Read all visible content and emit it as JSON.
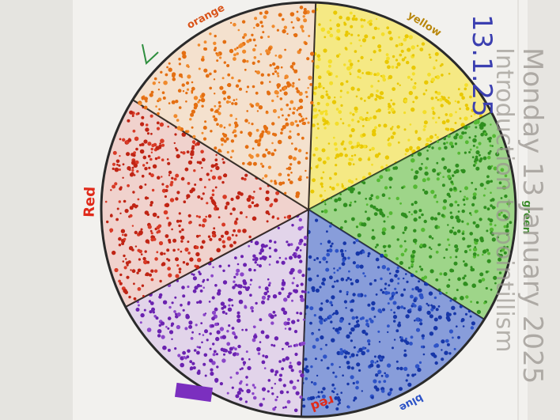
{
  "photo": {
    "paper_color": "#f2f1ee",
    "wheel": {
      "segments": [
        {
          "label": "yellow",
          "color": "#f4de2a",
          "dot_color": "#e9c800",
          "label_color": "#b8860b"
        },
        {
          "label": "green",
          "color": "#55b933",
          "dot_color": "#2f8f1f",
          "label_color": "#3a8a2a"
        },
        {
          "label": "blue",
          "color": "#2d53c7",
          "dot_color": "#1636a8",
          "label_color": "#2d53c7"
        },
        {
          "label": "",
          "color": "#8a45c9",
          "dot_color": "#6a22b0",
          "label_color": "#7b2fbf"
        },
        {
          "label": "Red",
          "color": "#d83a26",
          "dot_color": "#c02414",
          "label_color": "#e02a1a"
        },
        {
          "label": "orange",
          "color": "#f08a2c",
          "dot_color": "#e46f12",
          "label_color": "#d9541a"
        }
      ]
    },
    "handwriting": {
      "date": "13.1.25",
      "date_color": "#3b3fb0",
      "day_line": "Monday 13 January 2025",
      "title_line": "Introduction to pointillism",
      "pencil_color": "#9a9690",
      "corner_scrawl": "red"
    }
  }
}
